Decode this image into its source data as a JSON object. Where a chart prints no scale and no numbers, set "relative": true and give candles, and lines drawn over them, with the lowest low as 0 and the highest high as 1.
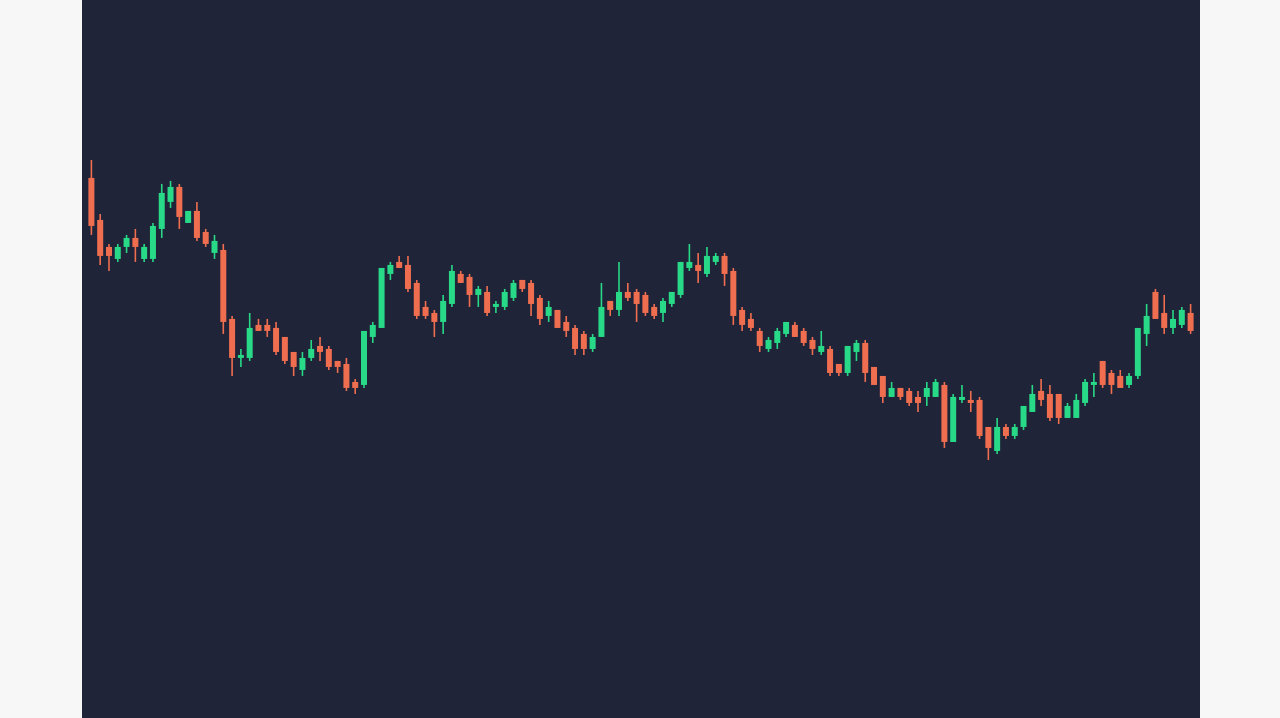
{
  "chart_data": {
    "type": "candlestick",
    "relative": true,
    "categories": [
      null,
      null,
      null,
      null,
      null,
      null,
      null,
      null,
      null,
      null,
      null,
      null,
      null,
      null,
      null,
      null,
      null,
      null,
      null,
      null,
      null,
      null,
      null,
      null,
      null,
      null,
      null,
      null,
      null,
      null,
      null,
      null,
      null,
      null,
      null,
      null,
      null,
      null,
      null,
      null,
      null,
      null,
      null,
      null,
      null,
      null,
      null,
      null,
      null,
      null,
      null,
      null,
      null,
      null,
      null,
      null,
      null,
      null,
      null,
      null,
      null,
      null,
      null,
      null,
      null,
      null,
      null,
      null,
      null,
      null,
      null,
      null,
      null,
      null,
      null,
      null,
      null,
      null,
      null,
      null,
      null,
      null,
      null,
      null,
      null,
      null,
      null,
      null,
      null,
      null,
      null,
      null,
      null,
      null,
      null,
      null,
      null,
      null,
      null,
      null,
      null,
      null,
      null,
      null,
      null,
      null,
      null,
      null,
      null,
      null,
      null,
      null,
      null,
      null,
      null,
      null,
      null,
      null,
      null,
      null,
      null,
      null,
      null,
      null,
      null,
      null
    ],
    "ohlc": [
      [
        0.94,
        1.0,
        0.75,
        0.78
      ],
      [
        0.8,
        0.82,
        0.65,
        0.68
      ],
      [
        0.71,
        0.72,
        0.63,
        0.68
      ],
      [
        0.67,
        0.72,
        0.66,
        0.71
      ],
      [
        0.71,
        0.75,
        0.69,
        0.74
      ],
      [
        0.74,
        0.77,
        0.66,
        0.71
      ],
      [
        0.67,
        0.72,
        0.66,
        0.71
      ],
      [
        0.67,
        0.79,
        0.66,
        0.78
      ],
      [
        0.77,
        0.92,
        0.74,
        0.89
      ],
      [
        0.86,
        0.93,
        0.84,
        0.91
      ],
      [
        0.91,
        0.92,
        0.77,
        0.81
      ],
      [
        0.79,
        0.83,
        0.79,
        0.83
      ],
      [
        0.83,
        0.86,
        0.73,
        0.74
      ],
      [
        0.76,
        0.77,
        0.71,
        0.72
      ],
      [
        0.69,
        0.75,
        0.67,
        0.73
      ],
      [
        0.7,
        0.72,
        0.42,
        0.46
      ],
      [
        0.47,
        0.48,
        0.28,
        0.34
      ],
      [
        0.34,
        0.37,
        0.31,
        0.35
      ],
      [
        0.34,
        0.49,
        0.33,
        0.44
      ],
      [
        0.45,
        0.47,
        0.43,
        0.43
      ],
      [
        0.45,
        0.47,
        0.41,
        0.43
      ],
      [
        0.44,
        0.46,
        0.35,
        0.36
      ],
      [
        0.41,
        0.41,
        0.32,
        0.33
      ],
      [
        0.36,
        0.36,
        0.28,
        0.31
      ],
      [
        0.3,
        0.36,
        0.28,
        0.34
      ],
      [
        0.34,
        0.4,
        0.33,
        0.37
      ],
      [
        0.38,
        0.41,
        0.33,
        0.36
      ],
      [
        0.37,
        0.38,
        0.3,
        0.31
      ],
      [
        0.33,
        0.33,
        0.29,
        0.31
      ],
      [
        0.32,
        0.34,
        0.23,
        0.24
      ],
      [
        0.26,
        0.27,
        0.22,
        0.24
      ],
      [
        0.25,
        0.43,
        0.24,
        0.43
      ],
      [
        0.41,
        0.46,
        0.39,
        0.45
      ],
      [
        0.44,
        0.64,
        0.44,
        0.64
      ],
      [
        0.62,
        0.66,
        0.6,
        0.65
      ],
      [
        0.66,
        0.68,
        0.64,
        0.64
      ],
      [
        0.65,
        0.68,
        0.56,
        0.57
      ],
      [
        0.59,
        0.6,
        0.47,
        0.48
      ],
      [
        0.51,
        0.53,
        0.47,
        0.48
      ],
      [
        0.49,
        0.5,
        0.41,
        0.46
      ],
      [
        0.46,
        0.55,
        0.42,
        0.53
      ],
      [
        0.52,
        0.65,
        0.51,
        0.63
      ],
      [
        0.62,
        0.63,
        0.59,
        0.59
      ],
      [
        0.61,
        0.62,
        0.51,
        0.55
      ],
      [
        0.55,
        0.58,
        0.51,
        0.57
      ],
      [
        0.56,
        0.58,
        0.48,
        0.49
      ],
      [
        0.51,
        0.53,
        0.49,
        0.52
      ],
      [
        0.51,
        0.57,
        0.5,
        0.56
      ],
      [
        0.54,
        0.6,
        0.53,
        0.59
      ],
      [
        0.6,
        0.6,
        0.56,
        0.57
      ],
      [
        0.59,
        0.6,
        0.48,
        0.52
      ],
      [
        0.54,
        0.55,
        0.45,
        0.47
      ],
      [
        0.48,
        0.53,
        0.46,
        0.51
      ],
      [
        0.5,
        0.5,
        0.44,
        0.44
      ],
      [
        0.46,
        0.48,
        0.41,
        0.43
      ],
      [
        0.44,
        0.45,
        0.35,
        0.37
      ],
      [
        0.42,
        0.43,
        0.35,
        0.37
      ],
      [
        0.37,
        0.42,
        0.36,
        0.41
      ],
      [
        0.41,
        0.59,
        0.41,
        0.51
      ],
      [
        0.53,
        0.53,
        0.48,
        0.5
      ],
      [
        0.5,
        0.66,
        0.48,
        0.56
      ],
      [
        0.56,
        0.59,
        0.53,
        0.54
      ],
      [
        0.56,
        0.57,
        0.46,
        0.52
      ],
      [
        0.55,
        0.56,
        0.48,
        0.49
      ],
      [
        0.51,
        0.52,
        0.47,
        0.48
      ],
      [
        0.49,
        0.54,
        0.46,
        0.53
      ],
      [
        0.52,
        0.56,
        0.51,
        0.56
      ],
      [
        0.55,
        0.66,
        0.54,
        0.66
      ],
      [
        0.64,
        0.72,
        0.63,
        0.66
      ],
      [
        0.65,
        0.69,
        0.59,
        0.63
      ],
      [
        0.62,
        0.71,
        0.61,
        0.68
      ],
      [
        0.66,
        0.69,
        0.65,
        0.68
      ],
      [
        0.68,
        0.69,
        0.58,
        0.62
      ],
      [
        0.63,
        0.64,
        0.45,
        0.48
      ],
      [
        0.5,
        0.51,
        0.43,
        0.45
      ],
      [
        0.47,
        0.49,
        0.43,
        0.44
      ],
      [
        0.43,
        0.44,
        0.36,
        0.38
      ],
      [
        0.37,
        0.41,
        0.36,
        0.4
      ],
      [
        0.39,
        0.44,
        0.37,
        0.43
      ],
      [
        0.42,
        0.46,
        0.41,
        0.46
      ],
      [
        0.45,
        0.46,
        0.41,
        0.41
      ],
      [
        0.43,
        0.44,
        0.38,
        0.39
      ],
      [
        0.4,
        0.41,
        0.35,
        0.37
      ],
      [
        0.36,
        0.43,
        0.35,
        0.38
      ],
      [
        0.37,
        0.38,
        0.28,
        0.29
      ],
      [
        0.32,
        0.32,
        0.28,
        0.29
      ],
      [
        0.29,
        0.38,
        0.28,
        0.38
      ],
      [
        0.36,
        0.4,
        0.33,
        0.39
      ],
      [
        0.39,
        0.4,
        0.26,
        0.29
      ],
      [
        0.31,
        0.31,
        0.25,
        0.25
      ],
      [
        0.28,
        0.28,
        0.19,
        0.21
      ],
      [
        0.21,
        0.26,
        0.21,
        0.24
      ],
      [
        0.24,
        0.24,
        0.2,
        0.21
      ],
      [
        0.23,
        0.24,
        0.18,
        0.19
      ],
      [
        0.21,
        0.23,
        0.16,
        0.19
      ],
      [
        0.21,
        0.26,
        0.18,
        0.24
      ],
      [
        0.21,
        0.27,
        0.21,
        0.26
      ],
      [
        0.25,
        0.26,
        0.04,
        0.06
      ],
      [
        0.06,
        0.22,
        0.06,
        0.21
      ],
      [
        0.2,
        0.25,
        0.19,
        0.21
      ],
      [
        0.2,
        0.23,
        0.16,
        0.19
      ],
      [
        0.2,
        0.21,
        0.07,
        0.08
      ],
      [
        0.11,
        0.11,
        0.0,
        0.04
      ],
      [
        0.03,
        0.14,
        0.02,
        0.11
      ],
      [
        0.11,
        0.12,
        0.07,
        0.08
      ],
      [
        0.08,
        0.12,
        0.07,
        0.11
      ],
      [
        0.11,
        0.18,
        0.1,
        0.18
      ],
      [
        0.16,
        0.25,
        0.16,
        0.22
      ],
      [
        0.23,
        0.27,
        0.18,
        0.2
      ],
      [
        0.22,
        0.25,
        0.13,
        0.14
      ],
      [
        0.22,
        0.22,
        0.12,
        0.14
      ],
      [
        0.14,
        0.19,
        0.14,
        0.18
      ],
      [
        0.14,
        0.22,
        0.14,
        0.2
      ],
      [
        0.19,
        0.27,
        0.18,
        0.26
      ],
      [
        0.25,
        0.29,
        0.21,
        0.26
      ],
      [
        0.33,
        0.33,
        0.24,
        0.25
      ],
      [
        0.29,
        0.3,
        0.22,
        0.25
      ],
      [
        0.28,
        0.3,
        0.24,
        0.24
      ],
      [
        0.25,
        0.29,
        0.24,
        0.28
      ],
      [
        0.28,
        0.44,
        0.27,
        0.44
      ],
      [
        0.42,
        0.52,
        0.38,
        0.48
      ],
      [
        0.56,
        0.57,
        0.47,
        0.47
      ],
      [
        0.49,
        0.55,
        0.42,
        0.44
      ],
      [
        0.44,
        0.5,
        0.42,
        0.47
      ],
      [
        0.45,
        0.51,
        0.44,
        0.5
      ],
      [
        0.49,
        0.52,
        0.42,
        0.43
      ]
    ],
    "colors": [
      "#f06e50",
      "#f06e50",
      "#f06e50",
      "#28d987",
      "#28d987",
      "#f06e50",
      "#28d987",
      "#28d987",
      "#28d987",
      "#28d987",
      "#f06e50",
      "#28d987",
      "#f06e50",
      "#f06e50",
      "#28d987",
      "#f06e50",
      "#f06e50",
      "#28d987",
      "#28d987",
      "#f06e50",
      "#f06e50",
      "#f06e50",
      "#f06e50",
      "#f06e50",
      "#28d987",
      "#28d987",
      "#f06e50",
      "#f06e50",
      "#f06e50",
      "#f06e50",
      "#f06e50",
      "#28d987",
      "#28d987",
      "#28d987",
      "#28d987",
      "#f06e50",
      "#f06e50",
      "#f06e50",
      "#f06e50",
      "#f06e50",
      "#28d987",
      "#28d987",
      "#f06e50",
      "#f06e50",
      "#28d987",
      "#f06e50",
      "#28d987",
      "#28d987",
      "#28d987",
      "#f06e50",
      "#f06e50",
      "#f06e50",
      "#28d987",
      "#f06e50",
      "#f06e50",
      "#f06e50",
      "#f06e50",
      "#28d987",
      "#28d987",
      "#f06e50",
      "#28d987",
      "#f06e50",
      "#f06e50",
      "#f06e50",
      "#f06e50",
      "#28d987",
      "#28d987",
      "#28d987",
      "#28d987",
      "#f06e50",
      "#28d987",
      "#28d987",
      "#f06e50",
      "#f06e50",
      "#f06e50",
      "#f06e50",
      "#f06e50",
      "#28d987",
      "#28d987",
      "#28d987",
      "#f06e50",
      "#f06e50",
      "#f06e50",
      "#28d987",
      "#f06e50",
      "#f06e50",
      "#28d987",
      "#28d987",
      "#f06e50",
      "#f06e50",
      "#f06e50",
      "#28d987",
      "#f06e50",
      "#f06e50",
      "#f06e50",
      "#28d987",
      "#28d987",
      "#f06e50",
      "#28d987",
      "#28d987",
      "#f06e50",
      "#f06e50",
      "#f06e50",
      "#28d987",
      "#f06e50",
      "#28d987",
      "#28d987",
      "#28d987",
      "#f06e50",
      "#f06e50",
      "#f06e50",
      "#28d987",
      "#28d987",
      "#28d987",
      "#28d987",
      "#f06e50",
      "#f06e50",
      "#f06e50",
      "#28d987",
      "#28d987",
      "#28d987",
      "#f06e50",
      "#f06e50",
      "#28d987",
      "#28d987",
      "#f06e50"
    ]
  }
}
